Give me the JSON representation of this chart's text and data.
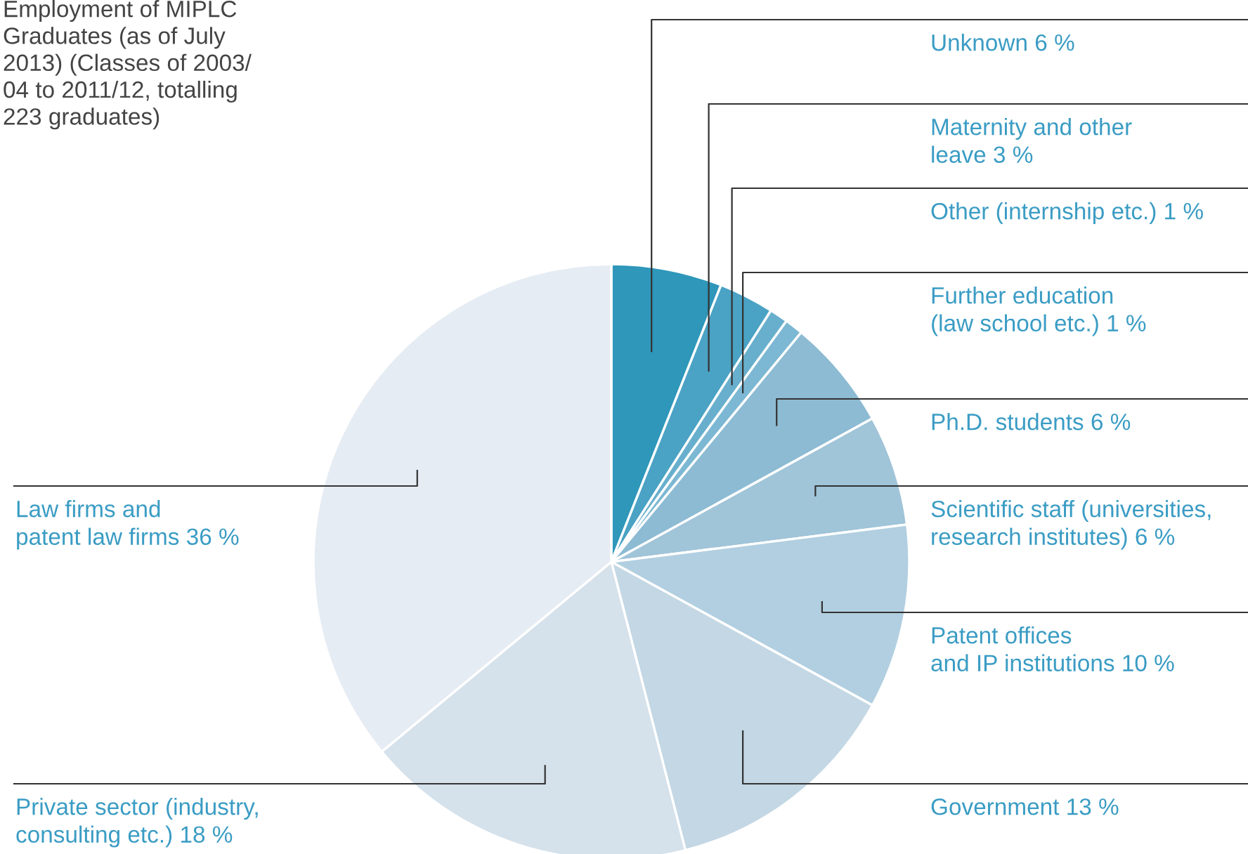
{
  "chart_data": {
    "type": "pie",
    "title": "Employment of MIPLC\nGraduates (as of July\n2013) (Classes of 2003/\n04 to 2011/12, totalling\n223 graduates)",
    "categories": [
      "Unknown",
      "Maternity and other\nleave",
      "Other (internship etc.)",
      "Further education\n(law school etc.)",
      "Ph.D. students",
      "Scientific staff (universities,\nresearch institutes)",
      "Patent offices\nand IP institutions",
      "Government",
      "Private sector (industry,\nconsulting etc.)",
      "Law firms and\npatent law firms"
    ],
    "values": [
      6,
      3,
      1,
      1,
      6,
      6,
      10,
      13,
      18,
      36
    ],
    "value_labels": [
      "6 %",
      "3 %",
      "1 %",
      "1 %",
      "6 %",
      "6 %",
      "10 %",
      "13 %",
      "18 %",
      "36 %"
    ],
    "colors": [
      "#2e97ba",
      "#4aa2c4",
      "#68afcd",
      "#7cb8d3",
      "#8cbbd3",
      "#a0c4d8",
      "#b1cfe0",
      "#c3d7e4",
      "#d5e1eb",
      "#e6ecf3"
    ],
    "legend": false
  }
}
